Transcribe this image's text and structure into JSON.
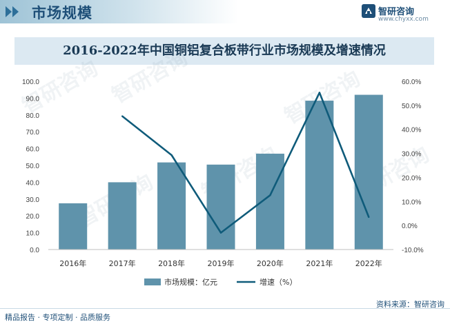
{
  "header": {
    "title": "市场规模",
    "brand_name": "智研咨询",
    "brand_url": "www.chyxx.com"
  },
  "chart_data": {
    "type": "bar+line",
    "title": "2016-2022年中国铜铝复合板带行业市场规模及增速情况",
    "categories": [
      "2016年",
      "2017年",
      "2018年",
      "2019年",
      "2020年",
      "2021年",
      "2022年"
    ],
    "series": [
      {
        "name": "市场规模：亿元",
        "kind": "bar",
        "axis": "left",
        "values": [
          27.5,
          40.0,
          51.8,
          50.5,
          57.0,
          88.5,
          92.0
        ]
      },
      {
        "name": "增速（%）",
        "kind": "line",
        "axis": "right",
        "values": [
          null,
          45.5,
          29.3,
          -3.0,
          12.6,
          55.3,
          3.5
        ]
      }
    ],
    "ylim_left": [
      0,
      100
    ],
    "ylim_right": [
      -10,
      60
    ],
    "left_ticks": [
      "0.0",
      "10.0",
      "20.0",
      "30.0",
      "40.0",
      "50.0",
      "60.0",
      "70.0",
      "80.0",
      "90.0",
      "100.0"
    ],
    "right_ticks": [
      "-10.0%",
      "0.0%",
      "10.0%",
      "20.0%",
      "30.0%",
      "40.0%",
      "50.0%",
      "60.0%"
    ],
    "grid": false,
    "legend_position": "bottom",
    "colors": {
      "bar": "#5f93ab",
      "line": "#0f5b7a"
    }
  },
  "footer": {
    "left": "精品报告 · 专项定制 · 品质服务",
    "source": "资料来源：智研咨询"
  },
  "watermark": "智研咨询"
}
